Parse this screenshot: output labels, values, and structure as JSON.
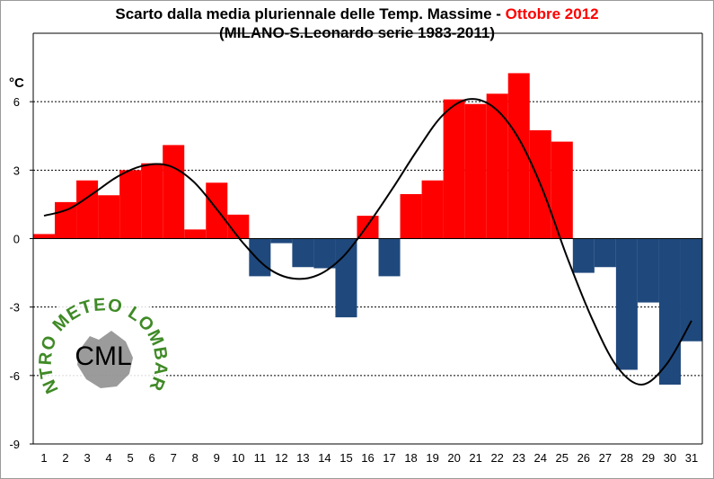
{
  "title": {
    "line1_prefix": "Scarto dalla media pluriennale delle Temp. Massime - ",
    "line1_highlight": "Ottobre 2012",
    "line2": "(MILANO-S.Leonardo serie 1983-2011)"
  },
  "unit_label": "°C",
  "logo": {
    "ring_text": "CENTRO METEO LOMBARDO",
    "initials": "CML"
  },
  "colors": {
    "positive": "#ff0000",
    "negative": "#1f497d",
    "trend": "#000000",
    "logo_green": "#3f8a26"
  },
  "chart_data": {
    "type": "bar",
    "title": "Scarto dalla media pluriennale delle Temp. Massime - Ottobre 2012",
    "ylabel": "°C",
    "xlabel": "",
    "ylim": [
      -9,
      9
    ],
    "yticks": [
      -9,
      -6,
      -3,
      0,
      3,
      6
    ],
    "grid": "horizontal dashed",
    "categories": [
      "1",
      "2",
      "3",
      "4",
      "5",
      "6",
      "7",
      "8",
      "9",
      "10",
      "11",
      "12",
      "13",
      "14",
      "15",
      "16",
      "17",
      "18",
      "19",
      "20",
      "21",
      "22",
      "23",
      "24",
      "25",
      "26",
      "27",
      "28",
      "29",
      "30",
      "31"
    ],
    "values": [
      0.2,
      1.6,
      2.55,
      1.9,
      3.0,
      3.3,
      4.1,
      0.4,
      2.45,
      1.05,
      -1.65,
      -0.2,
      -1.25,
      -1.3,
      -3.45,
      1.0,
      -1.65,
      1.95,
      2.55,
      6.1,
      5.9,
      6.35,
      7.25,
      4.75,
      4.25,
      -1.5,
      -1.25,
      -5.75,
      -2.8,
      -6.4,
      -4.5
    ],
    "trend_line": [
      1.0,
      1.3,
      2.0,
      2.75,
      3.2,
      3.2,
      2.5,
      1.2,
      -0.2,
      -1.3,
      -1.75,
      -1.6,
      -0.8,
      0.6,
      2.2,
      3.9,
      5.4,
      6.1,
      5.8,
      4.5,
      2.2,
      -0.8,
      -3.5,
      -5.6,
      -6.4,
      -5.5,
      -3.6
    ]
  }
}
